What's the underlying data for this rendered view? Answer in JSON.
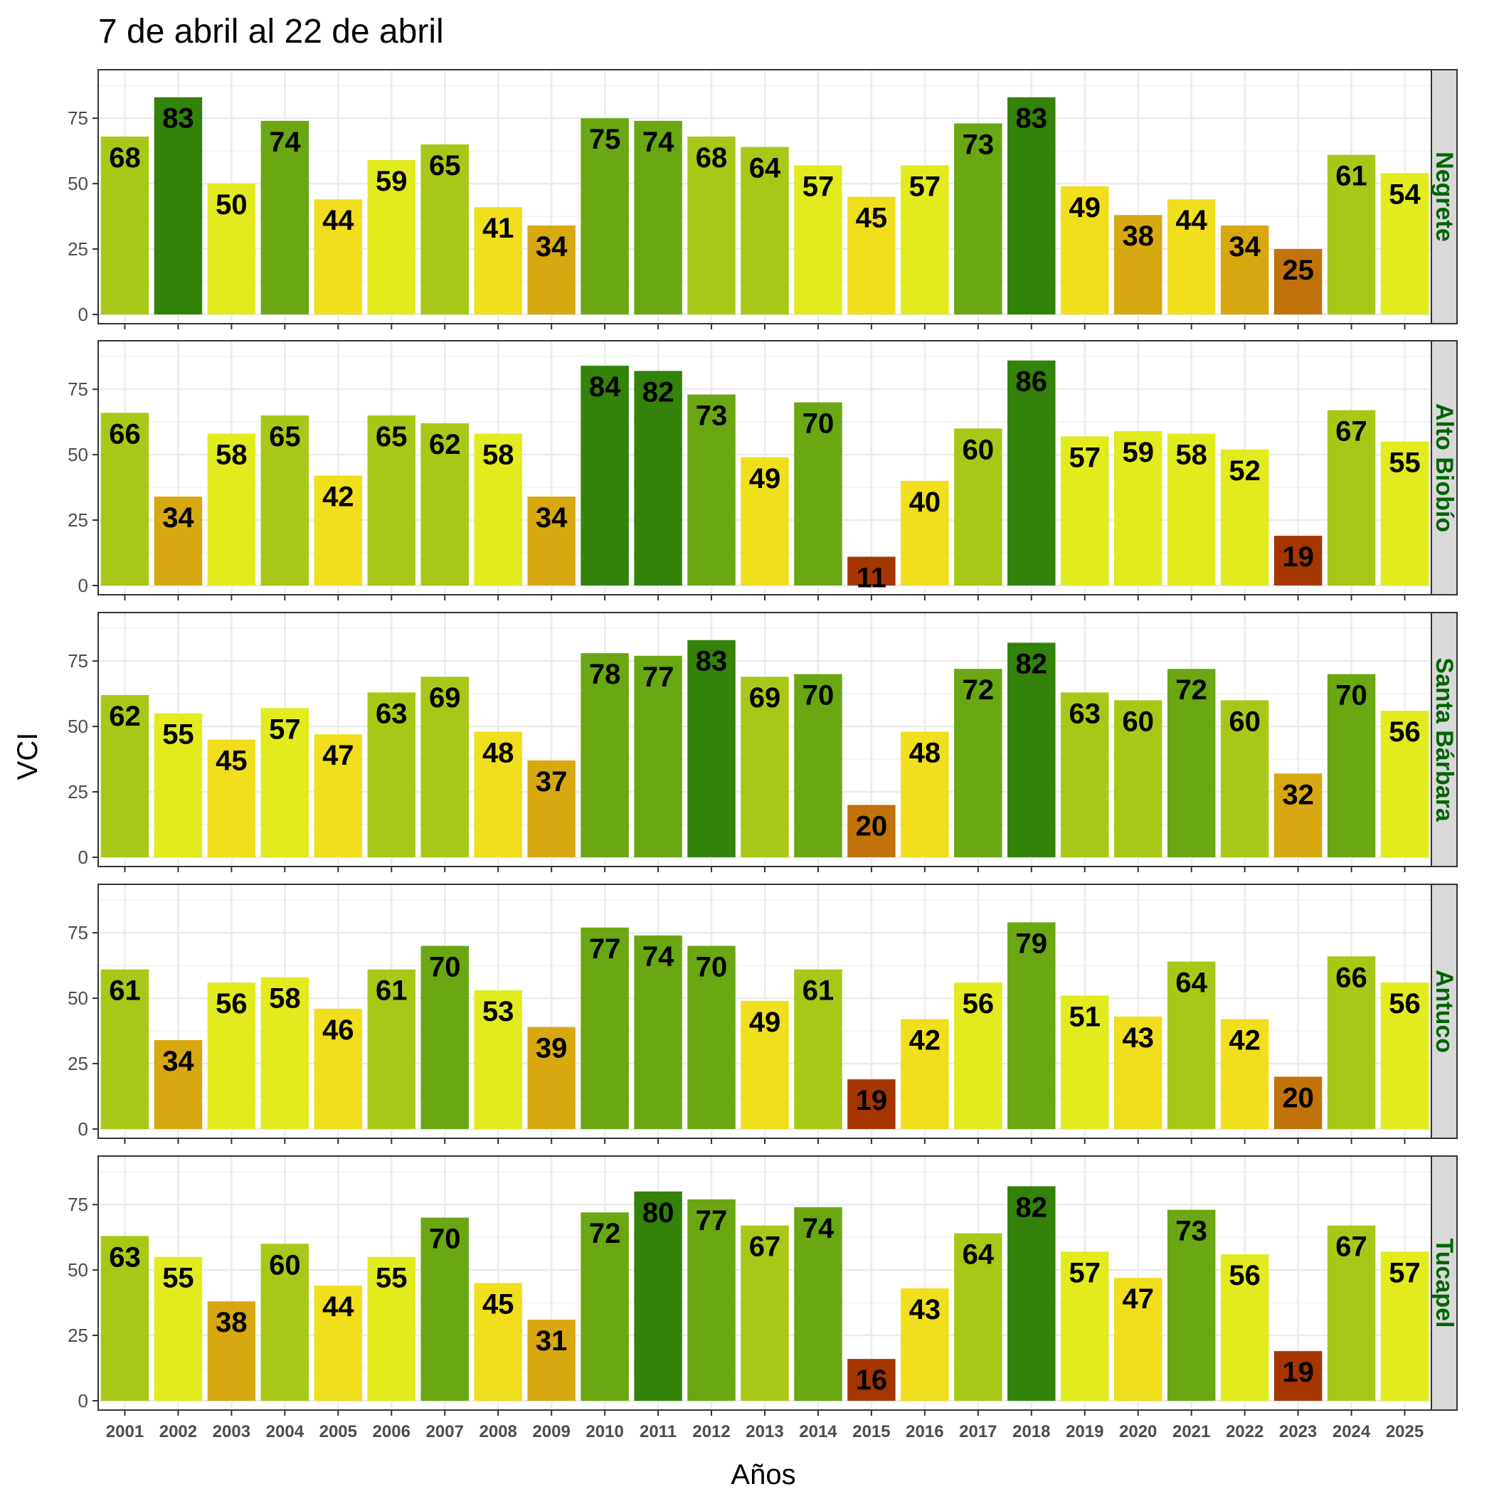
{
  "chart_data": {
    "type": "bar",
    "title": "7 de abril al 22 de abril",
    "xlabel": "Años",
    "ylabel": "VCI",
    "ylim": [
      0,
      90
    ],
    "yticks": [
      0,
      25,
      50,
      75
    ],
    "grid": true,
    "strip_color": "#006400",
    "categories": [
      "2001",
      "2002",
      "2003",
      "2004",
      "2005",
      "2006",
      "2007",
      "2008",
      "2009",
      "2010",
      "2011",
      "2012",
      "2013",
      "2014",
      "2015",
      "2016",
      "2017",
      "2018",
      "2019",
      "2020",
      "2021",
      "2022",
      "2023",
      "2024",
      "2025"
    ],
    "series": [
      {
        "name": "Negrete",
        "values": [
          68,
          83,
          50,
          74,
          44,
          59,
          65,
          41,
          34,
          75,
          74,
          68,
          64,
          57,
          45,
          57,
          73,
          83,
          49,
          38,
          44,
          34,
          25,
          61,
          54
        ]
      },
      {
        "name": "Alto Biobío",
        "values": [
          66,
          34,
          58,
          65,
          42,
          65,
          62,
          58,
          34,
          84,
          82,
          73,
          49,
          70,
          11,
          40,
          60,
          86,
          57,
          59,
          58,
          52,
          19,
          67,
          55
        ]
      },
      {
        "name": "Santa Bárbara",
        "values": [
          62,
          55,
          45,
          57,
          47,
          63,
          69,
          48,
          37,
          78,
          77,
          83,
          69,
          70,
          20,
          48,
          72,
          82,
          63,
          60,
          72,
          60,
          32,
          70,
          56
        ]
      },
      {
        "name": "Antuco",
        "values": [
          61,
          34,
          56,
          58,
          46,
          61,
          70,
          53,
          39,
          77,
          74,
          70,
          49,
          61,
          19,
          42,
          56,
          79,
          51,
          43,
          64,
          42,
          20,
          66,
          56
        ]
      },
      {
        "name": "Tucapel",
        "values": [
          63,
          55,
          38,
          60,
          44,
          55,
          70,
          45,
          31,
          72,
          80,
          77,
          67,
          74,
          16,
          43,
          64,
          82,
          57,
          47,
          73,
          56,
          19,
          67,
          57
        ]
      }
    ],
    "color_scale": [
      {
        "min": 80,
        "color": "#33820a"
      },
      {
        "min": 70,
        "color": "#6aa712"
      },
      {
        "min": 60,
        "color": "#a7c817"
      },
      {
        "min": 50,
        "color": "#e1eb1e"
      },
      {
        "min": 40,
        "color": "#f1de1c"
      },
      {
        "min": 30,
        "color": "#d7a810"
      },
      {
        "min": 20,
        "color": "#c2720a"
      },
      {
        "min": 0,
        "color": "#a63600"
      }
    ]
  }
}
